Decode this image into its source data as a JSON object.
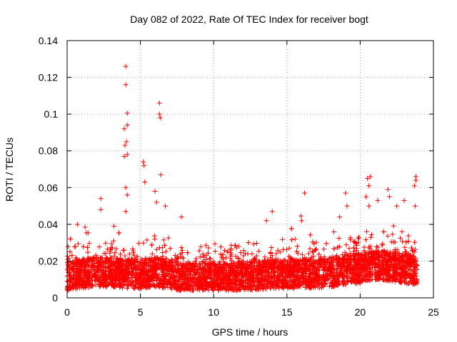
{
  "chart_data": {
    "type": "scatter",
    "title": "Day 082 of 2022, Rate Of TEC Index for receiver bogt",
    "xlabel": "GPS time / hours",
    "ylabel": "ROTI / TECUs",
    "xlim": [
      0,
      25
    ],
    "ylim": [
      0,
      0.14
    ],
    "x_ticks": [
      "0",
      "5",
      "10",
      "15",
      "20",
      "25"
    ],
    "y_ticks": [
      "0",
      "0.02",
      "0.04",
      "0.06",
      "0.08",
      "0.1",
      "0.12",
      "0.14"
    ],
    "grid": true,
    "legend": "none",
    "marker": "+",
    "color": "#ff0000",
    "series": [
      {
        "baseline_profile": [
          {
            "x": 0.0,
            "y": 0.012
          },
          {
            "x": 1.0,
            "y": 0.013
          },
          {
            "x": 2.0,
            "y": 0.014
          },
          {
            "x": 3.0,
            "y": 0.014
          },
          {
            "x": 4.0,
            "y": 0.013
          },
          {
            "x": 5.0,
            "y": 0.013
          },
          {
            "x": 6.0,
            "y": 0.014
          },
          {
            "x": 7.0,
            "y": 0.013
          },
          {
            "x": 8.0,
            "y": 0.011
          },
          {
            "x": 9.0,
            "y": 0.011
          },
          {
            "x": 10.0,
            "y": 0.011
          },
          {
            "x": 11.0,
            "y": 0.011
          },
          {
            "x": 12.0,
            "y": 0.012
          },
          {
            "x": 13.0,
            "y": 0.012
          },
          {
            "x": 14.0,
            "y": 0.013
          },
          {
            "x": 15.0,
            "y": 0.013
          },
          {
            "x": 16.0,
            "y": 0.013
          },
          {
            "x": 17.0,
            "y": 0.013
          },
          {
            "x": 18.0,
            "y": 0.014
          },
          {
            "x": 19.0,
            "y": 0.015
          },
          {
            "x": 20.0,
            "y": 0.016
          },
          {
            "x": 21.0,
            "y": 0.018
          },
          {
            "x": 22.0,
            "y": 0.017
          },
          {
            "x": 23.0,
            "y": 0.016
          },
          {
            "x": 23.9,
            "y": 0.015
          }
        ],
        "notable_points": [
          {
            "x": 4.0,
            "y": 0.126
          },
          {
            "x": 4.0,
            "y": 0.116
          },
          {
            "x": 4.1,
            "y": 0.1005
          },
          {
            "x": 4.1,
            "y": 0.094
          },
          {
            "x": 3.9,
            "y": 0.092
          },
          {
            "x": 4.05,
            "y": 0.085
          },
          {
            "x": 3.95,
            "y": 0.083
          },
          {
            "x": 4.1,
            "y": 0.078
          },
          {
            "x": 3.9,
            "y": 0.077
          },
          {
            "x": 4.0,
            "y": 0.06
          },
          {
            "x": 4.1,
            "y": 0.056
          },
          {
            "x": 4.0,
            "y": 0.047
          },
          {
            "x": 6.3,
            "y": 0.106
          },
          {
            "x": 6.3,
            "y": 0.1
          },
          {
            "x": 6.35,
            "y": 0.098
          },
          {
            "x": 6.4,
            "y": 0.067
          },
          {
            "x": 5.2,
            "y": 0.074
          },
          {
            "x": 5.25,
            "y": 0.072
          },
          {
            "x": 5.3,
            "y": 0.063
          },
          {
            "x": 6.0,
            "y": 0.058
          },
          {
            "x": 6.1,
            "y": 0.052
          },
          {
            "x": 6.7,
            "y": 0.05
          },
          {
            "x": 2.3,
            "y": 0.054
          },
          {
            "x": 2.3,
            "y": 0.048
          },
          {
            "x": 0.7,
            "y": 0.04
          },
          {
            "x": 3.2,
            "y": 0.039
          },
          {
            "x": 7.8,
            "y": 0.044
          },
          {
            "x": 14.0,
            "y": 0.047
          },
          {
            "x": 13.6,
            "y": 0.042
          },
          {
            "x": 16.2,
            "y": 0.057
          },
          {
            "x": 16.0,
            "y": 0.042
          },
          {
            "x": 19.0,
            "y": 0.057
          },
          {
            "x": 19.1,
            "y": 0.05
          },
          {
            "x": 18.6,
            "y": 0.044
          },
          {
            "x": 20.5,
            "y": 0.065
          },
          {
            "x": 20.7,
            "y": 0.066
          },
          {
            "x": 20.6,
            "y": 0.061
          },
          {
            "x": 20.4,
            "y": 0.055
          },
          {
            "x": 20.6,
            "y": 0.05
          },
          {
            "x": 21.2,
            "y": 0.053
          },
          {
            "x": 21.9,
            "y": 0.059
          },
          {
            "x": 22.0,
            "y": 0.055
          },
          {
            "x": 22.5,
            "y": 0.05
          },
          {
            "x": 23.0,
            "y": 0.053
          },
          {
            "x": 23.8,
            "y": 0.066
          },
          {
            "x": 23.8,
            "y": 0.064
          },
          {
            "x": 23.7,
            "y": 0.061
          },
          {
            "x": 23.75,
            "y": 0.05
          }
        ]
      }
    ]
  }
}
